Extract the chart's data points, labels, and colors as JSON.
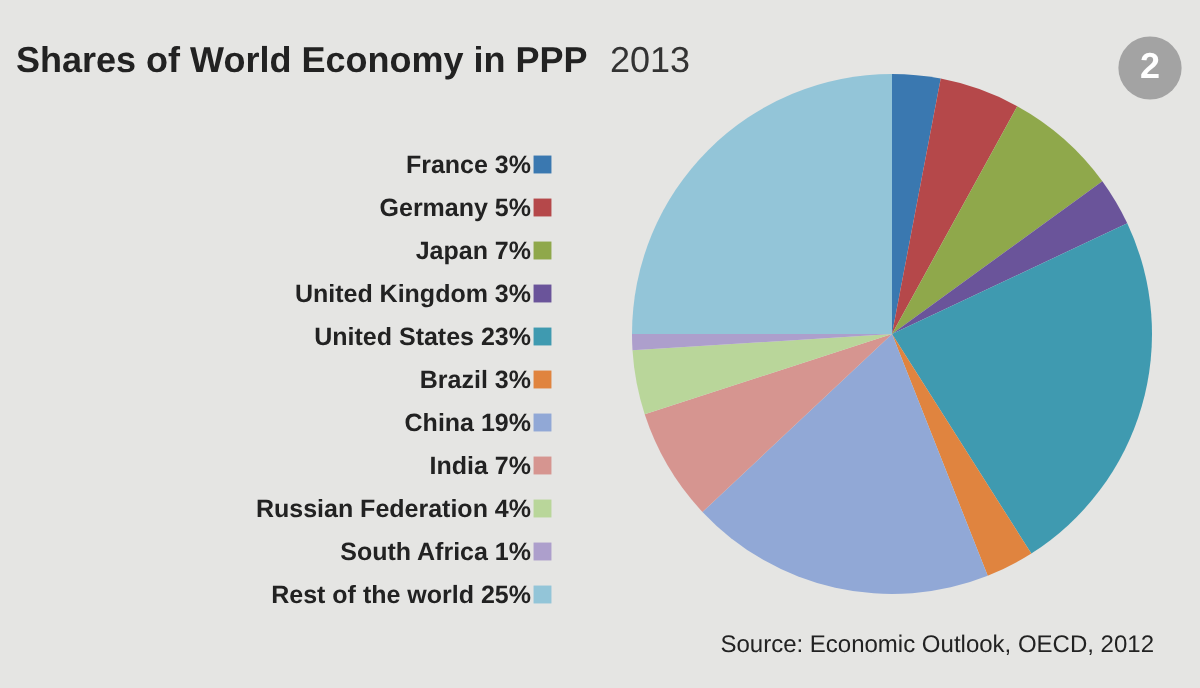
{
  "chart_data": {
    "type": "pie",
    "title": "Shares of World Economy in PPP",
    "subtitle": "2013",
    "categories": [
      "France",
      "Germany",
      "Japan",
      "United Kingdom",
      "United States",
      "Brazil",
      "China",
      "India",
      "Russian Federation",
      "South Africa",
      "Rest of the world"
    ],
    "values": [
      3,
      5,
      7,
      3,
      23,
      3,
      19,
      7,
      4,
      1,
      25
    ],
    "value_labels": [
      "3%",
      "5%",
      "7%",
      "3%",
      "23%",
      "3%",
      "19%",
      "7%",
      "4%",
      "1%",
      "25%"
    ],
    "colors": [
      "#3a78b0",
      "#b5484a",
      "#8fa84b",
      "#6a549a",
      "#3f9ab0",
      "#e0843f",
      "#91a8d6",
      "#d69590",
      "#b9d69a",
      "#ad9fcc",
      "#93c5d8"
    ],
    "legend": "left",
    "annotations": [
      "Source: Economic Outlook, OECD, 2012",
      "2"
    ]
  }
}
